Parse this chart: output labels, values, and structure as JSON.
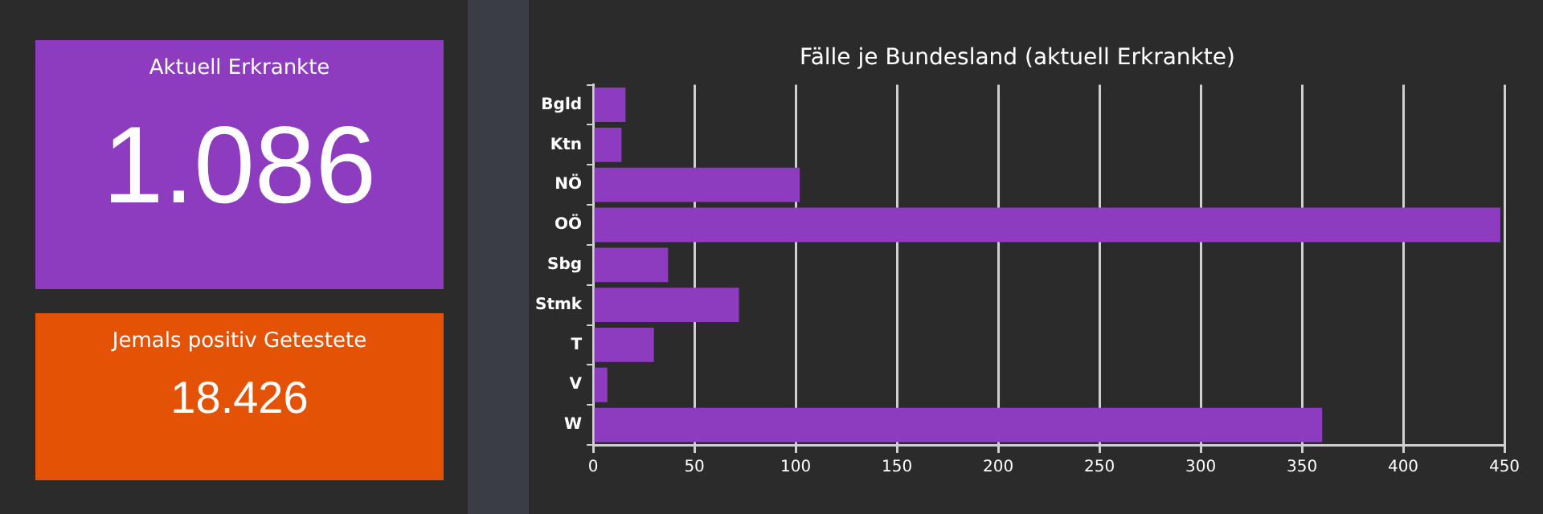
{
  "chart_data": [
    {
      "type": "other",
      "title": "Aktuell Erkrankte",
      "annotations": [
        "1.086"
      ],
      "color": "#8e3cbf"
    },
    {
      "type": "other",
      "title": "Jemals positiv Getestete",
      "annotations": [
        "18.426"
      ],
      "color": "#e35205"
    },
    {
      "type": "bar",
      "title": "Fälle je Bundesland (aktuell Erkrankte)",
      "orientation": "horizontal",
      "categories": [
        "Bgld",
        "Ktn",
        "NÖ",
        "OÖ",
        "Sbg",
        "Stmk",
        "T",
        "V",
        "W"
      ],
      "values": [
        16,
        14,
        102,
        448,
        37,
        72,
        30,
        7,
        360
      ],
      "color": "#8e3cbf",
      "xlim": [
        0,
        450
      ],
      "xticks": [
        0,
        50,
        100,
        150,
        200,
        250,
        300,
        350,
        400,
        450
      ],
      "grid": "x",
      "legend": false
    }
  ]
}
